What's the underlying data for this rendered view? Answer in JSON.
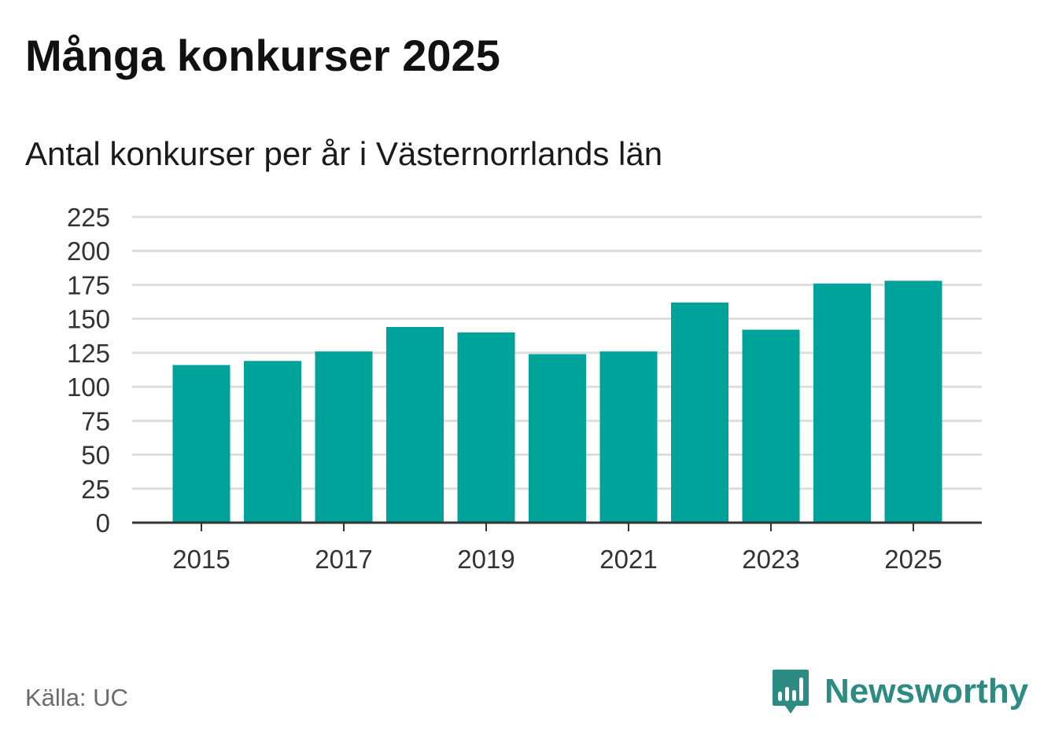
{
  "title": "Många konkurser 2025",
  "subtitle": "Antal konkurser per år i Västernorrlands län",
  "source": "Källa: UC",
  "brand": {
    "name": "Newsworthy",
    "color": "#2c8b83",
    "icon": "newsworthy-logo-icon"
  },
  "colors": {
    "bar": "#00a399",
    "grid": "#dddddd",
    "axis": "#333333",
    "text": "#333333"
  },
  "chart_data": {
    "type": "bar",
    "title": "Många konkurser 2025",
    "subtitle": "Antal konkurser per år i Västernorrlands län",
    "xlabel": "",
    "ylabel": "",
    "categories": [
      "2015",
      "2016",
      "2017",
      "2018",
      "2019",
      "2020",
      "2021",
      "2022",
      "2023",
      "2024",
      "2025"
    ],
    "values": [
      116,
      119,
      126,
      144,
      140,
      124,
      126,
      162,
      142,
      176,
      178
    ],
    "x_tick_labels": [
      "2015",
      "2017",
      "2019",
      "2021",
      "2023",
      "2025"
    ],
    "y_ticks": [
      0,
      25,
      50,
      75,
      100,
      125,
      150,
      175,
      200,
      225
    ],
    "ylim": [
      0,
      225
    ],
    "grid": true,
    "legend": "none"
  }
}
